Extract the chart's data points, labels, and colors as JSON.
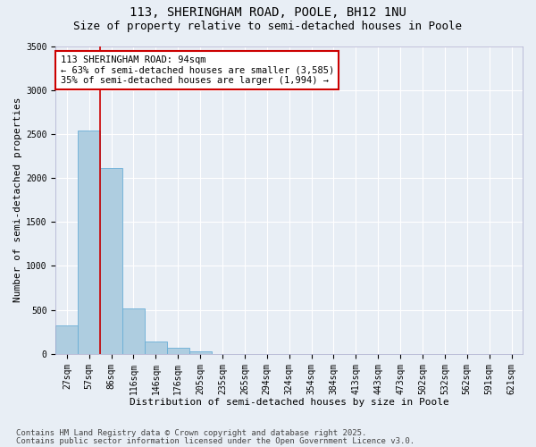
{
  "title_line1": "113, SHERINGHAM ROAD, POOLE, BH12 1NU",
  "title_line2": "Size of property relative to semi-detached houses in Poole",
  "xlabel": "Distribution of semi-detached houses by size in Poole",
  "ylabel": "Number of semi-detached properties",
  "categories": [
    "27sqm",
    "57sqm",
    "86sqm",
    "116sqm",
    "146sqm",
    "176sqm",
    "205sqm",
    "235sqm",
    "265sqm",
    "294sqm",
    "324sqm",
    "354sqm",
    "384sqm",
    "413sqm",
    "443sqm",
    "473sqm",
    "502sqm",
    "532sqm",
    "562sqm",
    "591sqm",
    "621sqm"
  ],
  "values": [
    320,
    2540,
    2110,
    515,
    145,
    65,
    30,
    0,
    0,
    0,
    0,
    0,
    0,
    0,
    0,
    0,
    0,
    0,
    0,
    0,
    0
  ],
  "bar_color": "#aecde0",
  "bar_edge_color": "#6aaed6",
  "background_color": "#e8eef5",
  "grid_color": "#ffffff",
  "annotation_text": "113 SHERINGHAM ROAD: 94sqm\n← 63% of semi-detached houses are smaller (3,585)\n35% of semi-detached houses are larger (1,994) →",
  "vline_color": "#cc0000",
  "ylim": [
    0,
    3500
  ],
  "yticks": [
    0,
    500,
    1000,
    1500,
    2000,
    2500,
    3000,
    3500
  ],
  "annotation_box_color": "#ffffff",
  "annotation_box_edge": "#cc0000",
  "footer_line1": "Contains HM Land Registry data © Crown copyright and database right 2025.",
  "footer_line2": "Contains public sector information licensed under the Open Government Licence v3.0.",
  "title_fontsize": 10,
  "subtitle_fontsize": 9,
  "axis_label_fontsize": 8,
  "tick_fontsize": 7,
  "annotation_fontsize": 7.5,
  "footer_fontsize": 6.5
}
